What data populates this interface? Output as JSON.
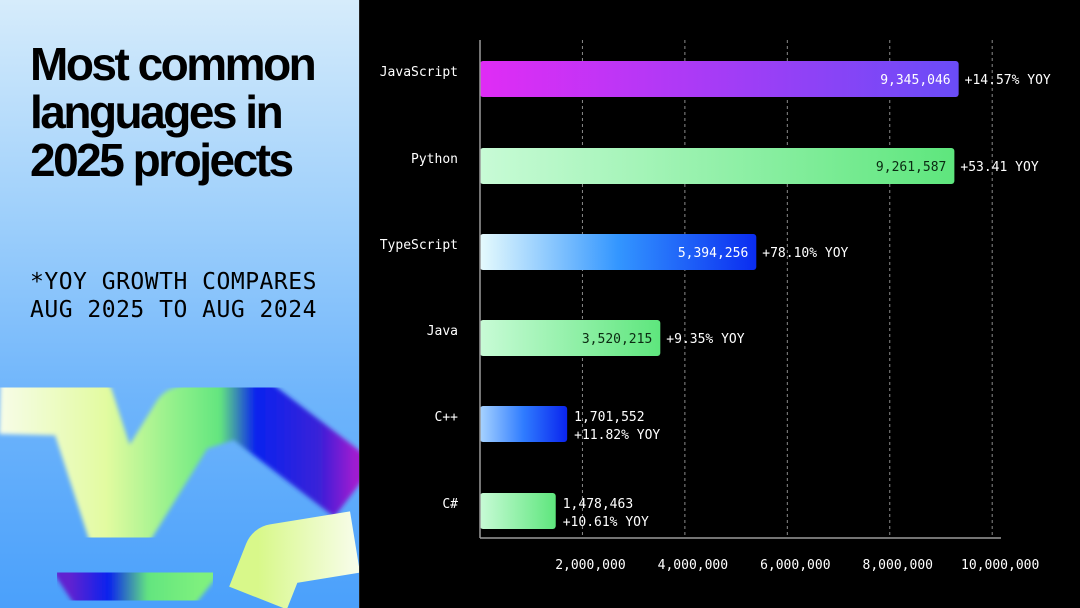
{
  "title": "Most common languages in 2025 projects",
  "note": "*YOY GROWTH COMPARES AUG 2025 TO AUG 2024",
  "chart_data": {
    "type": "bar",
    "orientation": "horizontal",
    "title": "",
    "xlabel": "",
    "ylabel": "",
    "xlim": [
      0,
      10000000
    ],
    "grid": "vertical dashed",
    "categories": [
      "JavaScript",
      "Python",
      "TypeScript",
      "Java",
      "C++",
      "C#"
    ],
    "values": [
      9345046,
      9261587,
      5394256,
      3520215,
      1701552,
      1478463
    ],
    "value_labels": [
      "9,345,046",
      "9,261,587",
      "5,394,256",
      "3,520,215",
      "1,701,552",
      "1,478,463"
    ],
    "growth_labels": [
      "+14.57% YOY",
      "+53.41 YOY",
      "+78.10% YOY",
      "+9.35% YOY",
      "+11.82% YOY",
      "+10.61% YOY"
    ],
    "bar_gradients": [
      [
        "#e02cf5",
        "#6a4cf7"
      ],
      [
        "#c8fbd6",
        "#5ee67d"
      ],
      [
        "#e6fbfd",
        "#3396ff",
        "#0a2cf0"
      ],
      [
        "#c8fbd6",
        "#5ee67d"
      ],
      [
        "#a7d3ff",
        "#2f7cff",
        "#0a24ee"
      ],
      [
        "#c8fbd6",
        "#5ee67d"
      ]
    ],
    "value_label_colors": [
      "#ffffff",
      "#0b2a12",
      "#ffffff",
      "#0b2a12",
      "#ffffff",
      "#ffffff"
    ],
    "ticks": [
      2000000,
      4000000,
      6000000,
      8000000,
      10000000
    ],
    "tick_labels": [
      "2,000,000",
      "4,000,000",
      "6,000,000",
      "8,000,000",
      "10,000,000"
    ]
  }
}
